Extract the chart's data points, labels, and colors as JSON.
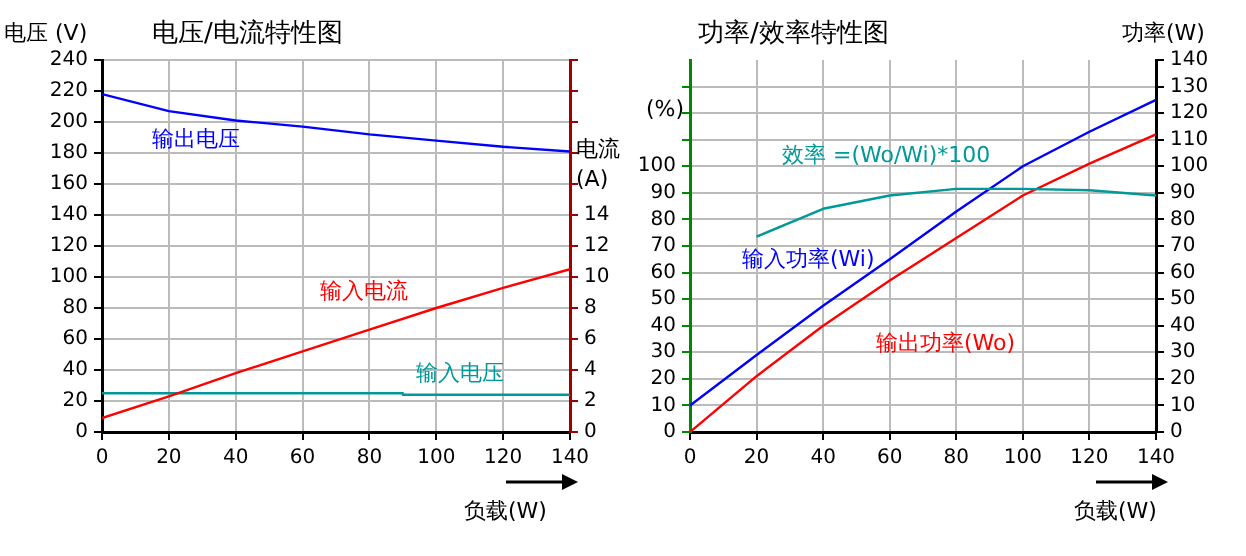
{
  "chart_data": [
    {
      "type": "line",
      "title": "电压/电流特性图",
      "xlabel": "负载(W)",
      "ylabel": "电压 (V)",
      "y2label": "电流\n(A)",
      "xlim": [
        0,
        140
      ],
      "xticks": [
        0,
        20,
        40,
        60,
        80,
        100,
        120,
        140
      ],
      "ylim": [
        0,
        240
      ],
      "yticks": [
        0,
        20,
        40,
        60,
        80,
        100,
        120,
        140,
        160,
        180,
        200,
        220,
        240
      ],
      "y2lim": [
        0,
        24
      ],
      "y2ticks": [
        0,
        2,
        4,
        6,
        8,
        10,
        12,
        14,
        {
          "value": 16,
          "label": null
        },
        {
          "value": 18,
          "label": null
        },
        {
          "value": 20,
          "label": null
        },
        {
          "value": 22,
          "label": null
        },
        {
          "value": 24,
          "label": null
        }
      ],
      "grid": true,
      "legend": false,
      "marker": "none",
      "line_style": "solid",
      "series": [
        {
          "name": "输出电压",
          "color": "#0000ff",
          "x": [
            0,
            20,
            40,
            60,
            80,
            100,
            120,
            140
          ],
          "values": [
            218,
            207,
            201,
            197,
            192,
            188,
            184,
            181
          ]
        },
        {
          "name": "输入电流",
          "color": "#ff0000",
          "axis": "y2",
          "x": [
            0,
            20,
            40,
            60,
            80,
            100,
            120,
            140
          ],
          "values": [
            0.9,
            2.3,
            3.8,
            5.2,
            6.6,
            8,
            9.3,
            10.5
          ]
        },
        {
          "name": "输入电压",
          "color": "#009999",
          "x": [
            0,
            90,
            90,
            140
          ],
          "values": [
            25,
            25,
            24,
            24
          ]
        }
      ]
    },
    {
      "type": "line",
      "title": "功率/效率特性图",
      "xlabel": "负载(W)",
      "ylabel": "(%)",
      "y2label": "功率(W)",
      "xlim": [
        0,
        140
      ],
      "xticks": [
        0,
        20,
        40,
        60,
        80,
        100,
        120,
        140
      ],
      "ylim": [
        0,
        140
      ],
      "yticks": [
        0,
        10,
        20,
        30,
        40,
        50,
        60,
        70,
        80,
        90,
        100,
        {
          "value": 110,
          "label": null
        },
        {
          "value": 120,
          "label": null
        },
        {
          "value": 130,
          "label": null
        }
      ],
      "y2lim": [
        0,
        140
      ],
      "y2ticks": [
        0,
        10,
        20,
        30,
        40,
        50,
        60,
        70,
        80,
        90,
        100,
        110,
        120,
        130,
        140
      ],
      "grid": true,
      "legend": false,
      "marker": "none",
      "line_style": "solid",
      "series": [
        {
          "name": "效率 =(Wo/Wi)*100",
          "color": "#009999",
          "x": [
            20,
            40,
            60,
            80,
            100,
            120,
            140
          ],
          "values": [
            73.5,
            84,
            89,
            91.5,
            91.5,
            91,
            89
          ]
        },
        {
          "name": "输入功率(Wi)",
          "color": "#0000ff",
          "axis": "y2",
          "x": [
            0,
            20,
            40,
            60,
            80,
            100,
            120,
            140
          ],
          "values": [
            10,
            29,
            47.5,
            65,
            83,
            100,
            113,
            125
          ]
        },
        {
          "name": "输出功率(Wo)",
          "color": "#ff0000",
          "axis": "y2",
          "x": [
            0,
            20,
            40,
            60,
            80,
            100,
            120,
            140
          ],
          "values": [
            0,
            21,
            40,
            57,
            73,
            89,
            101,
            112
          ]
        }
      ]
    }
  ]
}
